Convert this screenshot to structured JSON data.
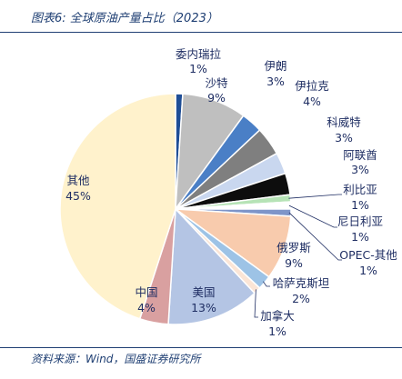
{
  "header": {
    "title": "图表6:  全球原油产量占比（2023）"
  },
  "footer": {
    "source": "资料来源：Wind，国盛证券研究所"
  },
  "chart_data": {
    "type": "pie",
    "title": "全球原油产量占比（2023）",
    "unit": "%",
    "slices": [
      {
        "label": "委内瑞拉",
        "value": 1,
        "value_label": "1%",
        "color": "#1f4e96"
      },
      {
        "label": "沙特",
        "value": 9,
        "value_label": "9%",
        "color": "#bfbfbf"
      },
      {
        "label": "伊朗",
        "value": 3,
        "value_label": "3%",
        "color": "#4a7fc6"
      },
      {
        "label": "伊拉克",
        "value": 4,
        "value_label": "4%",
        "color": "#7f7f7f"
      },
      {
        "label": "科威特",
        "value": 3,
        "value_label": "3%",
        "color": "#c9d7ef"
      },
      {
        "label": "阿联酋",
        "value": 3,
        "value_label": "3%",
        "color": "#0d0d0d"
      },
      {
        "label": "利比亚",
        "value": 1,
        "value_label": "1%",
        "color": "#b6e3b6"
      },
      {
        "label": "尼日利亚",
        "value": 1,
        "value_label": "1%",
        "color": "#ffffff"
      },
      {
        "label": "OPEC-其他",
        "value": 1,
        "value_label": "1%",
        "color": "#7e95c9"
      },
      {
        "label": "俄罗斯",
        "value": 9,
        "value_label": "9%",
        "color": "#f8cbad"
      },
      {
        "label": "哈萨克斯坦",
        "value": 2,
        "value_label": "2%",
        "color": "#9dc3e6"
      },
      {
        "label": "加拿大",
        "value": 1,
        "value_label": "1%",
        "color": "#fbe5d6"
      },
      {
        "label": "美国",
        "value": 13,
        "value_label": "13%",
        "color": "#b4c5e4"
      },
      {
        "label": "中国",
        "value": 4,
        "value_label": "4%",
        "color": "#d9a0a0"
      },
      {
        "label": "其他",
        "value": 45,
        "value_label": "45%",
        "color": "#fff2cc"
      }
    ]
  }
}
